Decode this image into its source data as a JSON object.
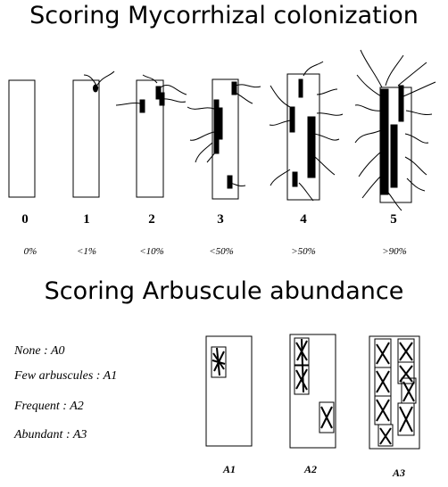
{
  "titles": {
    "colonization": "Scoring Mycorrhizal colonization",
    "arbuscule": "Scoring Arbuscule abundance"
  },
  "colonization_classes": [
    {
      "score": "0",
      "range": "0%"
    },
    {
      "score": "1",
      "range": "<1%"
    },
    {
      "score": "2",
      "range": "<10%"
    },
    {
      "score": "3",
      "range": "<50%"
    },
    {
      "score": "4",
      "range": ">50%"
    },
    {
      "score": "5",
      "range": ">90%"
    }
  ],
  "arbuscule_legend": [
    "None  :  A0",
    "Few arbuscules :  A1",
    "Frequent  :  A2",
    "Abundant  :  A3"
  ],
  "arbuscule_classes": [
    "A1",
    "A2",
    "A3"
  ]
}
